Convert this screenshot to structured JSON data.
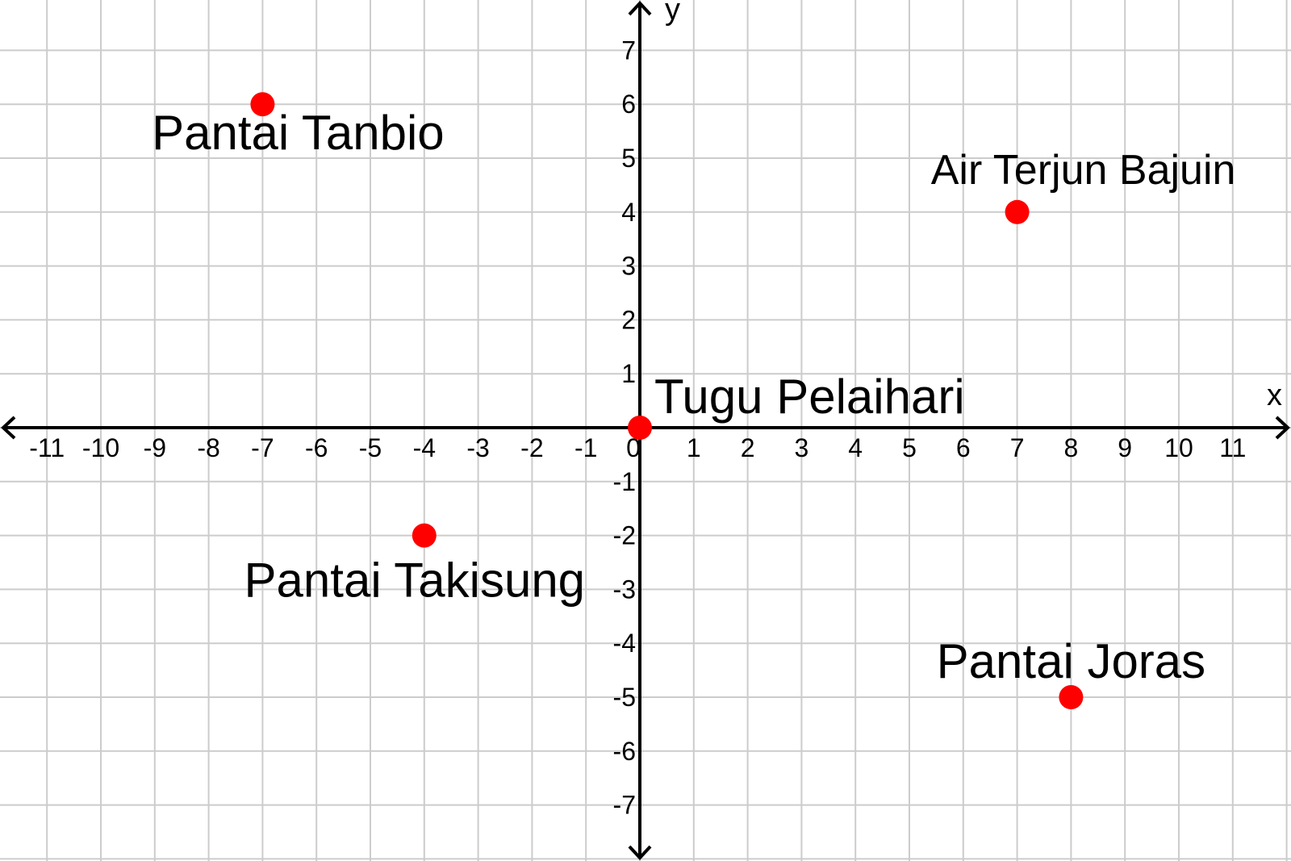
{
  "chart_data": {
    "type": "scatter",
    "xlabel": "x",
    "ylabel": "y",
    "xlim": [
      -11,
      11
    ],
    "ylim": [
      -7,
      7
    ],
    "grid": true,
    "x_ticks": [
      "-11",
      "-10",
      "-9",
      "-8",
      "-7",
      "-6",
      "-5",
      "-4",
      "-3",
      "-2",
      "-1",
      "0",
      "1",
      "2",
      "3",
      "4",
      "5",
      "6",
      "7",
      "8",
      "9",
      "10",
      "11"
    ],
    "y_ticks": [
      "7",
      "6",
      "5",
      "4",
      "3",
      "2",
      "1",
      "-1",
      "-2",
      "-3",
      "-4",
      "-5",
      "-6",
      "-7"
    ],
    "point_color": "#ff0000",
    "points": [
      {
        "label": "Pantai Tanbio",
        "x": -7,
        "y": 6
      },
      {
        "label": "Air Terjun Bajuin",
        "x": 7,
        "y": 4
      },
      {
        "label": "Tugu Pelaihari",
        "x": 0,
        "y": 0
      },
      {
        "label": "Pantai Takisung",
        "x": -4,
        "y": -2
      },
      {
        "label": "Pantai Joras",
        "x": 8,
        "y": -5
      }
    ]
  }
}
